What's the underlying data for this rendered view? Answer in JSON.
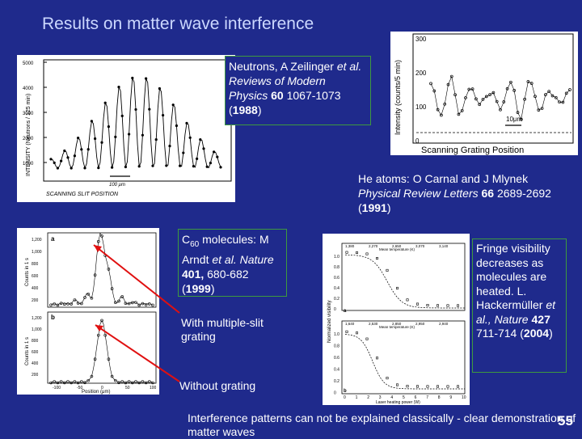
{
  "slide": {
    "title": "Results on matter wave interference",
    "number": "55",
    "conclusion": "Interference patterns can not be explained classically - clear demonstration of matter waves"
  },
  "neutrons": {
    "author": "Neutrons, A Zeilinger",
    "etal": "et al.",
    "journal": "Reviews of Modern Physics",
    "volume": "60",
    "pages": "1067-1073",
    "year": "1988",
    "plot": {
      "ylabel": "INTENSITY (Neutrons / 125 min)",
      "xlabel": "SCANNING SLIT POSITION",
      "yticks": [
        "5000",
        "4000",
        "3000",
        "2000",
        "1000"
      ],
      "scalebar": "100 μm"
    }
  },
  "helium": {
    "author": "He atoms: O Carnal and J Mlynek",
    "journal": "Physical Review Letters",
    "volume": "66",
    "pages": "2689-2692",
    "year": "1991",
    "plot": {
      "ylabel": "Intensity (counts/5 min)",
      "xlabel": "Scanning Grating Position",
      "yticks": [
        "300",
        "200",
        "100",
        "0"
      ],
      "scalebar": "10μm"
    }
  },
  "c60": {
    "author": "C",
    "subscript": "60",
    "author_rest": " molecules: M Arndt",
    "etal": "et al.",
    "journal": "Nature",
    "volume": "401,",
    "pages": "680-682",
    "year": "1999",
    "label_multi": "With multiple-slit grating",
    "label_without": "Without grating",
    "plot": {
      "ylabel_top": "Counts in 1 s",
      "ylabel_bottom": "Counts in 1 s",
      "xlabel": "Position (μm)",
      "panel_a": "a",
      "panel_b": "b",
      "yticks_top": [
        "1,200",
        "1,000",
        "800",
        "600",
        "400",
        "200"
      ],
      "yticks_bottom": [
        "1,200",
        "1,000",
        "800",
        "600",
        "400",
        "200"
      ],
      "xticks": [
        "-100",
        "-50",
        "0",
        "50",
        "100"
      ]
    }
  },
  "visibility": {
    "text_1": "Fringe visibility decreases as molecules are heated. L. Hackermüller",
    "etal": "et al.",
    "journal": ", Nature",
    "volume": "427",
    "pages": "711-714",
    "year": "2004",
    "plot": {
      "ylabel": "Normalized visibility",
      "xlabel": "Laser heating power (W)",
      "top_axis_label": "Mean temperature (K)",
      "panel_a": "a",
      "panel_b": "b",
      "temps_a": [
        "1,380",
        "2,270",
        "2,650",
        "3,070",
        "3,140"
      ],
      "temps_b": [
        "1,640",
        "2,530",
        "2,850",
        "2,950",
        "2,940"
      ],
      "yticks": [
        "1.0",
        "0.8",
        "0.6",
        "0.4",
        "0.2",
        "0"
      ],
      "xticks": [
        "0",
        "1",
        "2",
        "3",
        "4",
        "5",
        "6",
        "7",
        "8",
        "9",
        "10"
      ]
    }
  },
  "colors": {
    "background": "#1f2a8c",
    "title": "#ccd8ff",
    "box_border": "#3e9a3e",
    "arrow": "#e01010"
  }
}
